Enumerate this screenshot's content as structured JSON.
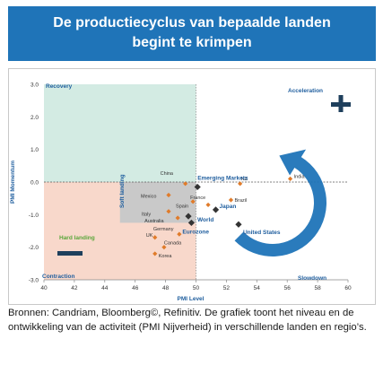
{
  "title": {
    "line1": "De productiecyclus van bepaalde landen",
    "line2": "begint te krimpen"
  },
  "source_text": "Bronnen: Candriam, Bloomberg©, Refinitiv. De grafiek toont het niveau en de ontwikkeling van de activiteit (PMI Nijverheid) in verschillende landen en regio’s.",
  "colors": {
    "title_bg": "#1f74b8",
    "recovery_zone": "#d3ebe3",
    "contraction_zone": "#f8d8cb",
    "soft_landing_zone": "#c9c9c9",
    "label_blue": "#1f5e9e",
    "country_marker": "#e07b2a",
    "region_marker": "#333333",
    "hard_landing_text": "#5aa63a",
    "arrow": "#1f74b8"
  },
  "chart_data": {
    "type": "scatter",
    "xlabel": "PMI Level",
    "ylabel": "PMI Momentum",
    "xlim": [
      40,
      60
    ],
    "ylim": [
      -3.0,
      3.0
    ],
    "xticks": [
      "40",
      "42",
      "44",
      "46",
      "48",
      "50",
      "52",
      "54",
      "56",
      "58",
      "60"
    ],
    "yticks": [
      "3.0",
      "2.0",
      "1.0",
      "0.0",
      "-1.0",
      "-2.0",
      "-3.0"
    ],
    "quadrants": {
      "recovery": "Recovery",
      "acceleration": "Acceleration",
      "contraction": "Contraction",
      "slowdown": "Slowdown",
      "hard_landing": "Hard landing",
      "soft_landing": "Soft landing"
    },
    "countries": [
      {
        "name": "China",
        "x": 49.3,
        "y": -0.05
      },
      {
        "name": "Mexico",
        "x": 48.2,
        "y": -0.4
      },
      {
        "name": "NZ",
        "x": 52.9,
        "y": -0.05
      },
      {
        "name": "India",
        "x": 56.2,
        "y": 0.1
      },
      {
        "name": "France",
        "x": 49.8,
        "y": -0.6
      },
      {
        "name": "Spain",
        "x": 50.8,
        "y": -0.7
      },
      {
        "name": "Brazil",
        "x": 52.3,
        "y": -0.55
      },
      {
        "name": "Italy",
        "x": 48.2,
        "y": -0.9
      },
      {
        "name": "Australia",
        "x": 48.8,
        "y": -1.1
      },
      {
        "name": "Germany",
        "x": 48.9,
        "y": -1.6
      },
      {
        "name": "UK",
        "x": 47.3,
        "y": -1.7
      },
      {
        "name": "Canada",
        "x": 47.9,
        "y": -2.0
      },
      {
        "name": "Korea",
        "x": 47.3,
        "y": -2.2
      }
    ],
    "regions": [
      {
        "name": "Emerging Markets",
        "x": 50.1,
        "y": -0.15
      },
      {
        "name": "World",
        "x": 49.5,
        "y": -1.05
      },
      {
        "name": "Japan",
        "x": 51.3,
        "y": -0.85
      },
      {
        "name": "Eurozone",
        "x": 49.7,
        "y": -1.25
      },
      {
        "name": "United States",
        "x": 52.8,
        "y": -1.3
      }
    ]
  }
}
